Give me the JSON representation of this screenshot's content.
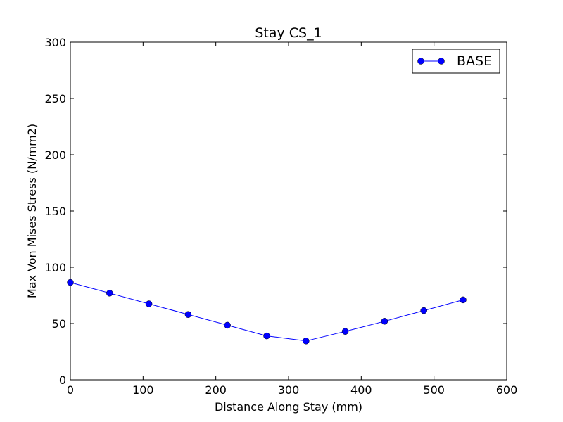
{
  "chart_data": {
    "type": "line",
    "title": "Stay CS_1",
    "xlabel": "Distance Along Stay (mm)",
    "ylabel": "Max Von Mises Stress (N/mm2)",
    "xlim": [
      0,
      600
    ],
    "ylim": [
      0,
      300
    ],
    "x_ticks": [
      "0",
      "100",
      "200",
      "300",
      "400",
      "500",
      "600"
    ],
    "y_ticks": [
      "0",
      "50",
      "100",
      "150",
      "200",
      "250",
      "300"
    ],
    "grid": false,
    "legend_position": "top-right",
    "series": [
      {
        "name": "BASE",
        "color": "#0000ff",
        "marker": "circle",
        "x": [
          0,
          54,
          108,
          162,
          216,
          270,
          324,
          378,
          432,
          486,
          540
        ],
        "y": [
          86.5,
          77,
          67.5,
          58,
          48.5,
          39,
          34.5,
          43,
          52,
          61.5,
          71
        ]
      }
    ]
  }
}
